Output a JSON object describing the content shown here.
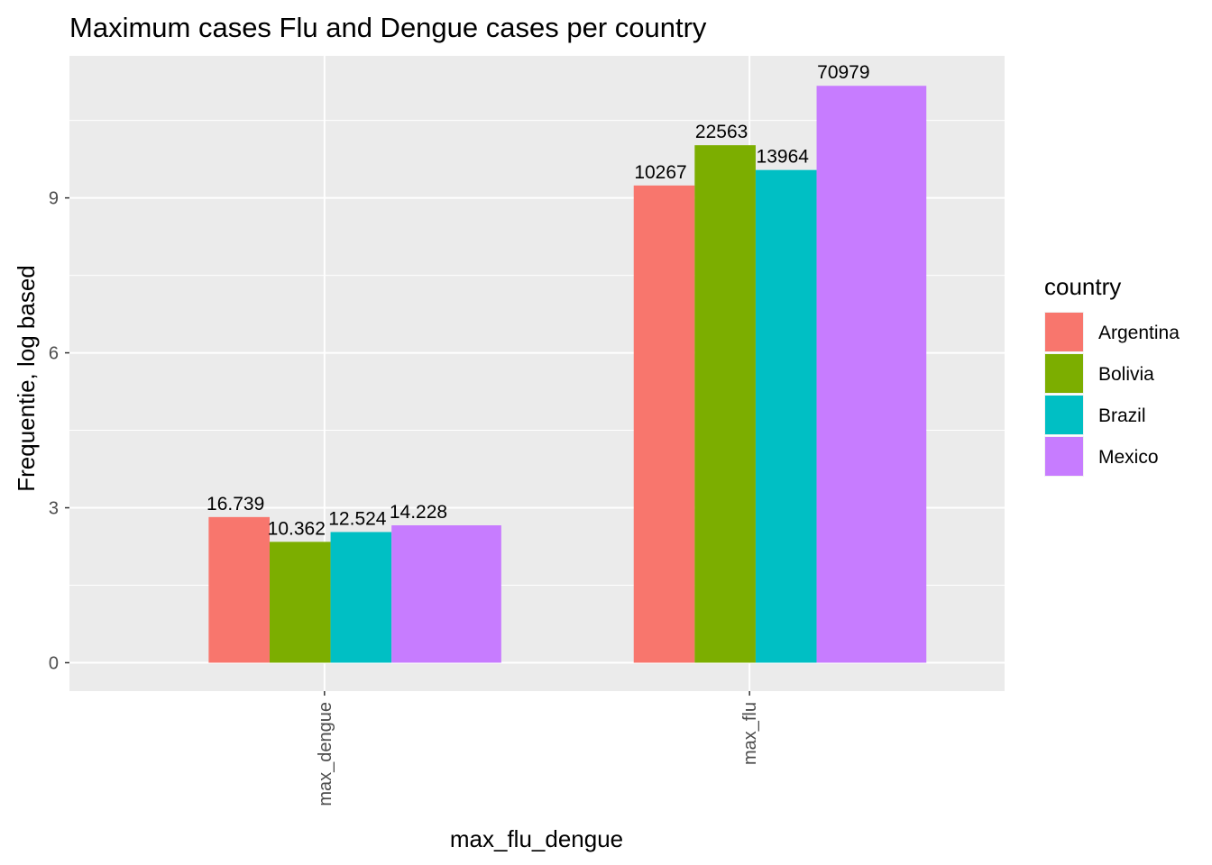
{
  "chart_data": {
    "type": "bar",
    "title": "Maximum cases Flu and Dengue cases per country",
    "xlabel": "max_flu_dengue",
    "ylabel": "Frequentie, log based",
    "categories": [
      "max_dengue",
      "max_flu"
    ],
    "ylim": [
      -0.55,
      11.75
    ],
    "yticks": [
      0,
      3,
      6,
      9
    ],
    "grid": true,
    "legend": {
      "title": "country",
      "position": "right"
    },
    "series": [
      {
        "name": "Argentina",
        "color": "#F8766D",
        "values": [
          2.82,
          9.24
        ],
        "labels": [
          "16.739",
          "10267"
        ]
      },
      {
        "name": "Bolivia",
        "color": "#7CAE00",
        "values": [
          2.34,
          10.02
        ],
        "labels": [
          "10.362",
          "22563"
        ]
      },
      {
        "name": "Brazil",
        "color": "#00BFC4",
        "values": [
          2.53,
          9.54
        ],
        "labels": [
          "12.524",
          "13964"
        ]
      },
      {
        "name": "Mexico",
        "color": "#C77CFF",
        "values": [
          2.66,
          11.17
        ],
        "labels": [
          "14.228",
          "70979"
        ]
      }
    ]
  }
}
